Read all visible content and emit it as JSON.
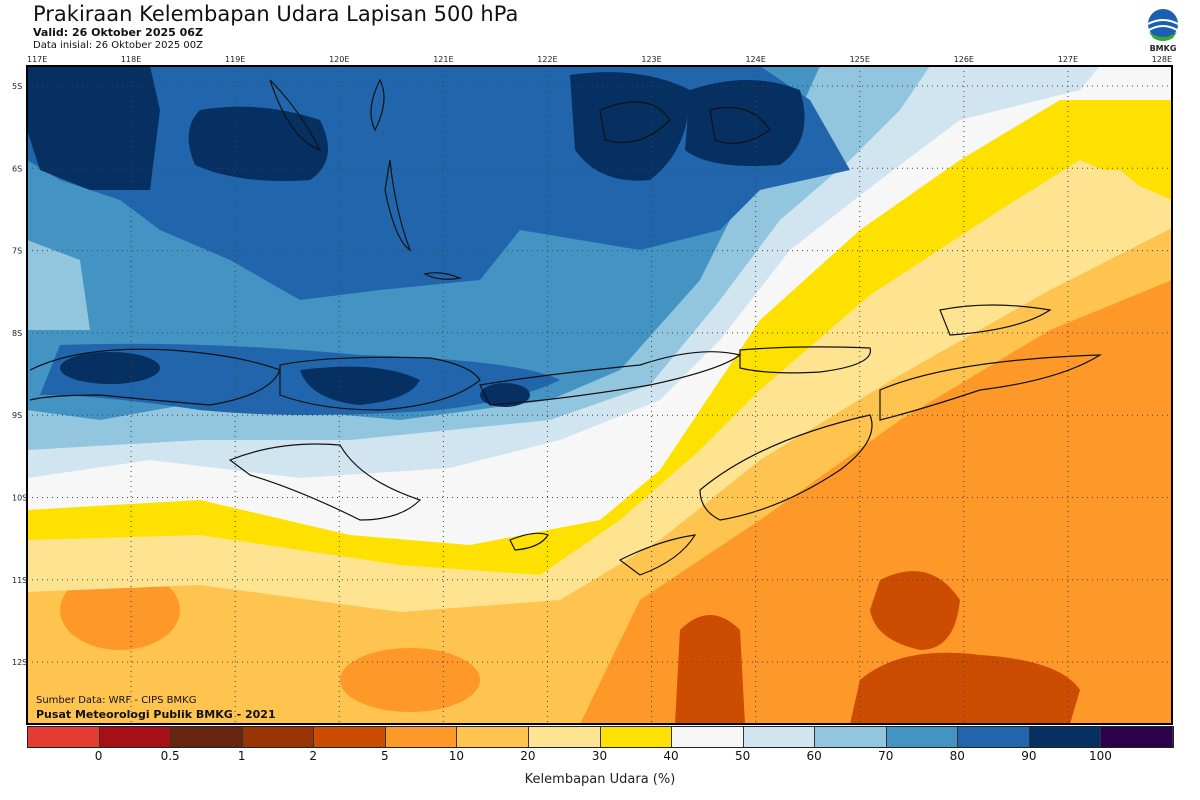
{
  "header": {
    "title": "Prakiraan Kelembapan Udara Lapisan 500 hPa",
    "valid": "Valid: 26 Oktober 2025 06Z",
    "initial": "Data inisial: 26 Oktober 2025 00Z"
  },
  "logo": {
    "text": "BMKG"
  },
  "map": {
    "lon_ticks": [
      "117E",
      "118E",
      "119E",
      "120E",
      "121E",
      "122E",
      "123E",
      "124E",
      "125E",
      "126E",
      "127E",
      "128E"
    ],
    "lat_ticks": [
      "5S",
      "6S",
      "7S",
      "8S",
      "9S",
      "10S",
      "11S",
      "12S"
    ]
  },
  "footer": {
    "source": "Sumber Data: WRF - CIPS BMKG",
    "org": "Pusat Meteorologi Publik BMKG - 2021"
  },
  "colorbar": {
    "colors": [
      "#e63b32",
      "#a50f15",
      "#67240f",
      "#993404",
      "#cc4c02",
      "#fe9929",
      "#fec44f",
      "#fee391",
      "#ffe100",
      "#f7f7f7",
      "#d1e5f0",
      "#92c5de",
      "#4393c3",
      "#2166ac",
      "#053061",
      "#2d004b"
    ],
    "ticks": [
      "0",
      "0.5",
      "1",
      "2",
      "5",
      "10",
      "20",
      "30",
      "40",
      "50",
      "60",
      "70",
      "80",
      "90",
      "100"
    ],
    "label": "Kelembapan Udara (%)"
  }
}
